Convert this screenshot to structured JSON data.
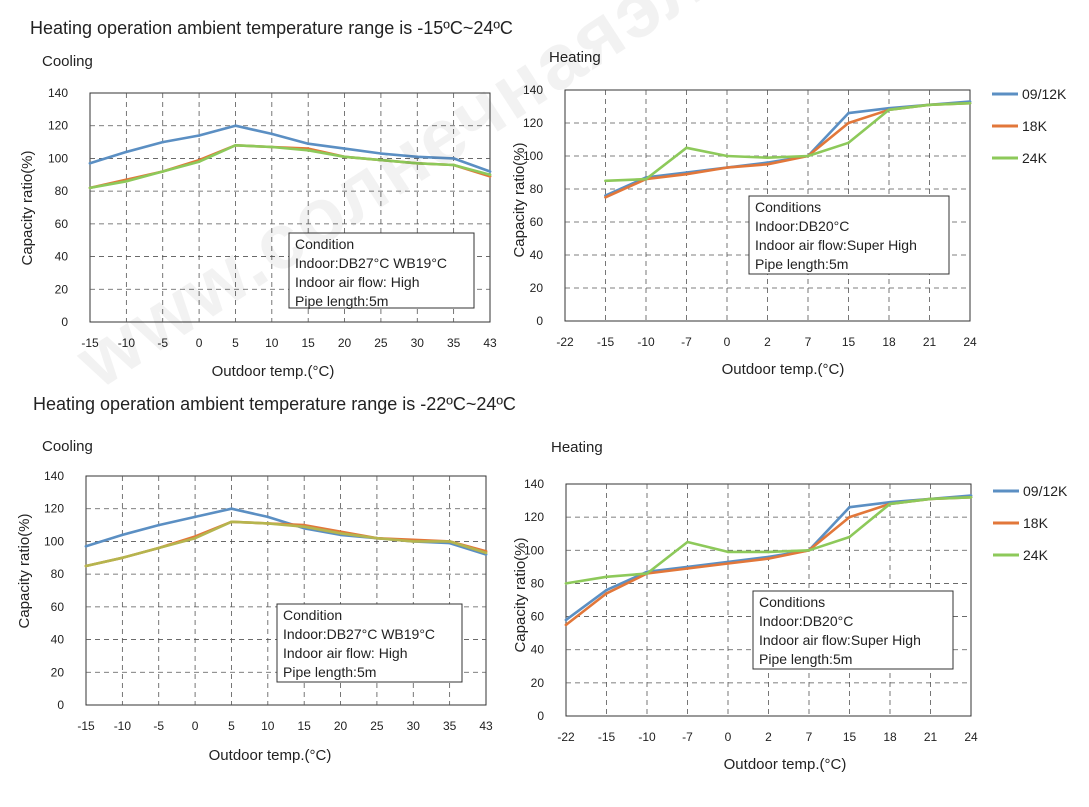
{
  "headings": [
    "Heating operation ambient temperature range is -15ºC~24ºC",
    "Heating operation ambient temperature range is -22ºC~24ºC"
  ],
  "watermark": "www.солнечнаяэлектростанция.рф",
  "colors": {
    "s1": "#5b8fc3",
    "s2": "#e2773a",
    "s3": "#8dc95a"
  },
  "chart_data": [
    {
      "type": "line",
      "title": "Cooling",
      "xlabel": "Outdoor temp.(°C)",
      "ylabel": "Capacity ratio(%)",
      "categories": [
        "-15",
        "-10",
        "-5",
        "0",
        "5",
        "10",
        "15",
        "20",
        "25",
        "30",
        "35",
        "43"
      ],
      "ylim": [
        0,
        140
      ],
      "yticks": [
        "0",
        "20",
        "40",
        "60",
        "80",
        "100",
        "120",
        "140"
      ],
      "grid": true,
      "series": [
        {
          "values": [
            97,
            104,
            110,
            114,
            120,
            115,
            109,
            106,
            103,
            101,
            100,
            92
          ],
          "color": "#5b8fc3"
        },
        {
          "values": [
            82,
            87,
            92,
            99,
            108,
            107,
            106,
            101,
            99,
            97,
            96,
            89
          ],
          "color": "#e2773a"
        },
        {
          "values": [
            82,
            86,
            92,
            98,
            108,
            107,
            105,
            101,
            99,
            97,
            96,
            90
          ],
          "color": "#8dc95a"
        }
      ],
      "annotation": [
        "Condition",
        "Indoor:DB27°C WB19°C",
        "Indoor air flow: High",
        "Pipe length:5m"
      ]
    },
    {
      "type": "line",
      "title": "Heating",
      "xlabel": "Outdoor temp.(°C)",
      "ylabel": "Capacity ratio(%)",
      "categories": [
        "-22",
        "-15",
        "-10",
        "-7",
        "0",
        "2",
        "7",
        "15",
        "18",
        "21",
        "24"
      ],
      "ylim": [
        0,
        140
      ],
      "yticks": [
        "0",
        "20",
        "40",
        "60",
        "80",
        "100",
        "120",
        "140"
      ],
      "grid": true,
      "legend": "right",
      "series": [
        {
          "name": "09/12K",
          "values": [
            null,
            76,
            87,
            90,
            93,
            96,
            100,
            126,
            129,
            131,
            133
          ],
          "color": "#5b8fc3"
        },
        {
          "name": "18K",
          "values": [
            null,
            75,
            86,
            89,
            93,
            95,
            100,
            120,
            128,
            131,
            132
          ],
          "color": "#e2773a"
        },
        {
          "name": "24K",
          "values": [
            null,
            85,
            86,
            105,
            100,
            99,
            100,
            108,
            128,
            131,
            132
          ],
          "color": "#8dc95a"
        }
      ],
      "annotation": [
        "Conditions",
        "Indoor:DB20°C",
        "Indoor air flow:Super High",
        "Pipe length:5m"
      ]
    },
    {
      "type": "line",
      "title": "Cooling",
      "xlabel": "Outdoor temp.(°C)",
      "ylabel": "Capacity ratio(%)",
      "categories": [
        "-15",
        "-10",
        "-5",
        "0",
        "5",
        "10",
        "15",
        "20",
        "25",
        "30",
        "35",
        "43"
      ],
      "ylim": [
        0,
        140
      ],
      "yticks": [
        "0",
        "20",
        "40",
        "60",
        "80",
        "100",
        "120",
        "140"
      ],
      "grid": true,
      "series": [
        {
          "values": [
            97,
            104,
            110,
            115,
            120,
            115,
            108,
            104,
            102,
            100,
            99,
            92
          ],
          "color": "#5b8fc3"
        },
        {
          "values": [
            85,
            90,
            96,
            103,
            112,
            111,
            110,
            106,
            102,
            101,
            100,
            94
          ],
          "color": "#e2773a"
        },
        {
          "values": [
            85,
            90,
            96,
            102,
            112,
            111,
            109,
            105,
            102,
            100,
            100,
            93
          ],
          "color": "#b5b54e"
        }
      ],
      "annotation": [
        "Condition",
        "Indoor:DB27°C WB19°C",
        "Indoor air flow: High",
        "Pipe length:5m"
      ]
    },
    {
      "type": "line",
      "title": "Heating",
      "xlabel": "Outdoor temp.(°C)",
      "ylabel": "Capacity ratio(%)",
      "categories": [
        "-22",
        "-15",
        "-10",
        "-7",
        "0",
        "2",
        "7",
        "15",
        "18",
        "21",
        "24"
      ],
      "ylim": [
        0,
        140
      ],
      "yticks": [
        "0",
        "20",
        "40",
        "60",
        "80",
        "100",
        "120",
        "140"
      ],
      "grid": true,
      "legend": "right",
      "series": [
        {
          "name": "09/12K",
          "values": [
            58,
            76,
            87,
            90,
            93,
            96,
            100,
            126,
            129,
            131,
            133
          ],
          "color": "#5b8fc3"
        },
        {
          "name": "18K",
          "values": [
            55,
            74,
            86,
            89,
            92,
            95,
            100,
            120,
            128,
            131,
            132
          ],
          "color": "#e2773a"
        },
        {
          "name": "24K",
          "values": [
            80,
            84,
            86,
            105,
            99,
            99,
            100,
            108,
            128,
            131,
            132
          ],
          "color": "#8dc95a"
        }
      ],
      "annotation": [
        "Conditions",
        "Indoor:DB20°C",
        "Indoor air flow:Super High",
        "Pipe length:5m"
      ]
    }
  ]
}
